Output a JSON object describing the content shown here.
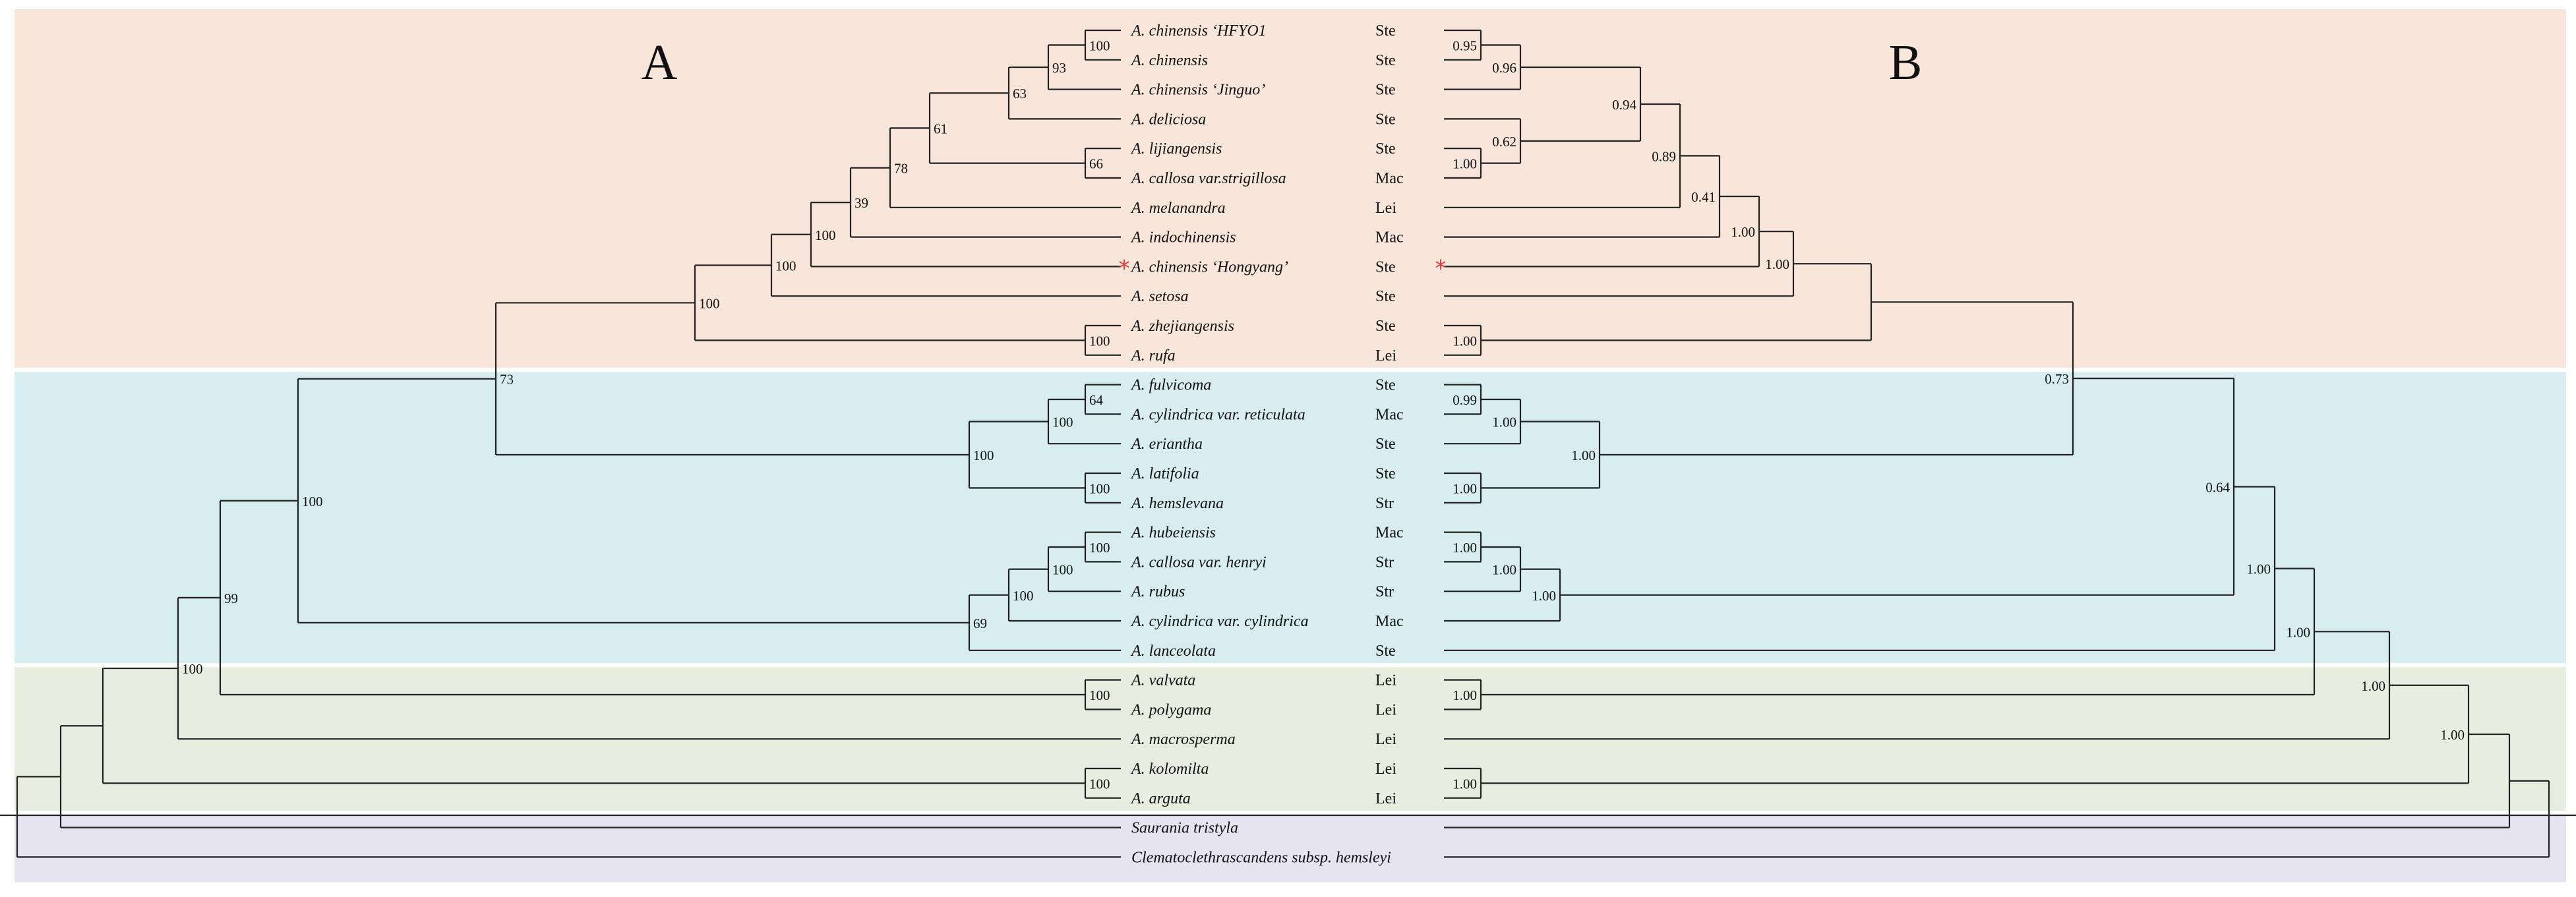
{
  "panels": {
    "left_label": "A",
    "right_label": "B",
    "band_colors": [
      "#f8e6da",
      "#d8edf0",
      "#e6eedf",
      "#e6e4f0"
    ]
  },
  "star_color": "#e53838",
  "taxa": [
    {
      "name": "A. chinensis",
      "cultivar": "‘HFYO1",
      "section": "Ste"
    },
    {
      "name": "A. chinensis",
      "cultivar": "",
      "section": "Ste"
    },
    {
      "name": "A. chinensis",
      "cultivar": "‘Jinguo’",
      "section": "Ste"
    },
    {
      "name": "A. deliciosa",
      "cultivar": "",
      "section": "Ste"
    },
    {
      "name": "A. lijiangensis",
      "cultivar": "",
      "section": "Ste"
    },
    {
      "name": "A. callosa var.strigillosa",
      "cultivar": "",
      "section": "Mac"
    },
    {
      "name": "A. melanandra",
      "cultivar": "",
      "section": "Lei"
    },
    {
      "name": "A. indochinensis",
      "cultivar": "",
      "section": "Mac"
    },
    {
      "name": "A. chinensis",
      "cultivar": "‘Hongyang’",
      "section": "Ste",
      "starred": true
    },
    {
      "name": "A. setosa",
      "cultivar": "",
      "section": "Ste"
    },
    {
      "name": "A. zhejiangensis",
      "cultivar": "",
      "section": "Ste"
    },
    {
      "name": "A. rufa",
      "cultivar": "",
      "section": "Lei"
    },
    {
      "name": "A. fulvicoma",
      "cultivar": "",
      "section": "Ste"
    },
    {
      "name": "A. cylindrica var. reticulata",
      "cultivar": "",
      "section": "Mac"
    },
    {
      "name": "A. eriantha",
      "cultivar": "",
      "section": "Ste"
    },
    {
      "name": "A. latifolia",
      "cultivar": "",
      "section": "Ste"
    },
    {
      "name": "A. hemslevana",
      "cultivar": "",
      "section": "Str"
    },
    {
      "name": "A. hubeiensis",
      "cultivar": "",
      "section": "Mac"
    },
    {
      "name": "A. callosa var. henryi",
      "cultivar": "",
      "section": "Str"
    },
    {
      "name": "A. rubus",
      "cultivar": "",
      "section": "Str"
    },
    {
      "name": "A. cylindrica var. cylindrica",
      "cultivar": "",
      "section": "Mac"
    },
    {
      "name": "A. lanceolata",
      "cultivar": "",
      "section": "Ste"
    },
    {
      "name": "A. valvata",
      "cultivar": "",
      "section": "Lei"
    },
    {
      "name": "A. polygama",
      "cultivar": "",
      "section": "Lei"
    },
    {
      "name": "A. macrosperma",
      "cultivar": "",
      "section": "Lei"
    },
    {
      "name": "A. kolomilta",
      "cultivar": "",
      "section": "Lei"
    },
    {
      "name": "A. arguta",
      "cultivar": "",
      "section": "Lei"
    },
    {
      "name": "Saurania tristyla",
      "cultivar": "",
      "section": ""
    },
    {
      "name": "Clematoclethrascandens subsp. hemsleyi",
      "cultivar": "",
      "section": ""
    }
  ],
  "tree_a_support": [
    "100",
    "93",
    "63",
    "66",
    "61",
    "78",
    "39",
    "100",
    "100",
    "100",
    "100",
    "73",
    "64",
    "100",
    "100",
    "100",
    "100",
    "100",
    "69",
    "100",
    "100",
    "100",
    "99",
    "100",
    "100"
  ],
  "tree_b_support": [
    "0.95",
    "0.96",
    "0.62",
    "1.00",
    "0.94",
    "0.89",
    "0.41",
    "1.00",
    "1.00",
    "1.00",
    "0.99",
    "1.00",
    "1.00",
    "1.00",
    "1.00",
    "1.00",
    "1.00",
    "0.73",
    "0.64",
    "1.00",
    "1.00",
    "1.00",
    "1.00",
    "1.00",
    "1.00"
  ]
}
